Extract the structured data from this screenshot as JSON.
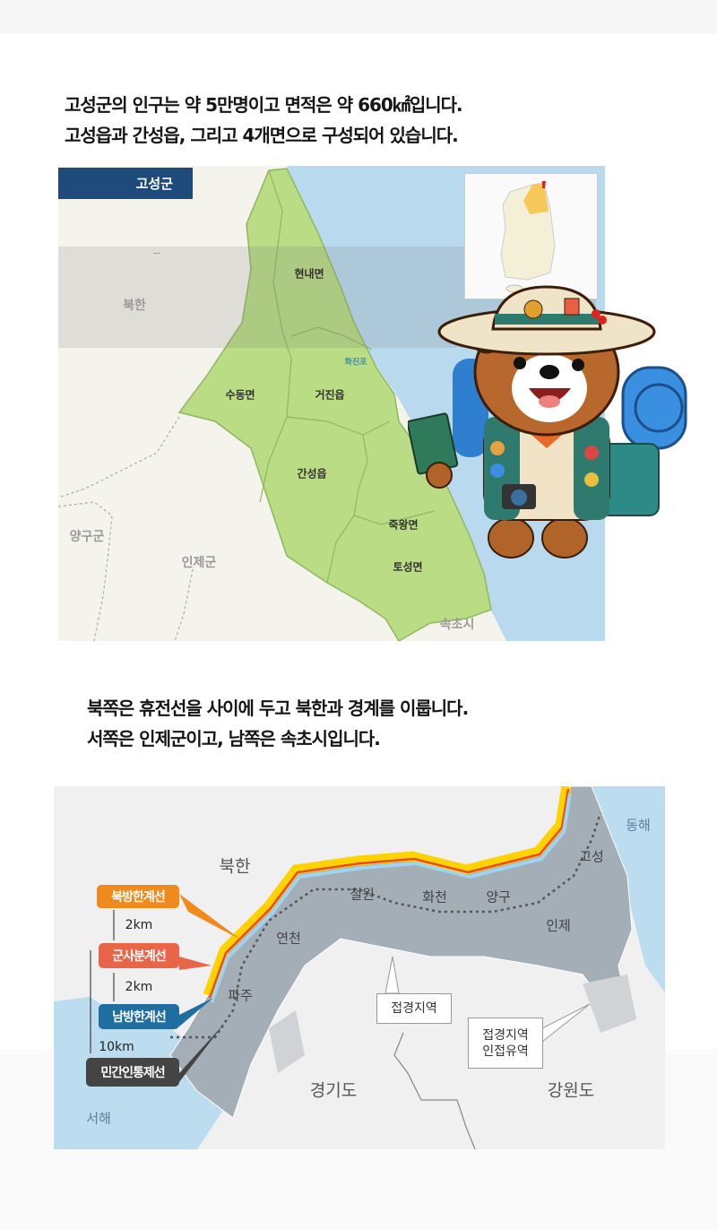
{
  "intro": {
    "lines": [
      "고성군의 인구는 약 5만명이고 면적은 약 660㎢입니다.",
      "고성읍과 간성읍, 그리고 4개면으로 구성되어 있습니다."
    ]
  },
  "map1": {
    "title": "고성군",
    "labels": {
      "north_korea": "북한",
      "hyeonnae": "현내면",
      "hwajinpo": "화진포",
      "geojin": "거진읍",
      "sudong": "수동면",
      "ganseong": "간성읍",
      "jugwang": "죽왕면",
      "toseong": "토성면",
      "yanggu": "양구군",
      "inje": "인제군",
      "sokcho": "속초시"
    },
    "colors": {
      "title_bg": "#1f4a7c",
      "land": "#b9dc84",
      "sea": "#b8d9ee"
    }
  },
  "border_text": {
    "lines": [
      "북쪽은 휴전선을 사이에 두고 북한과 경계를 이룹니다.",
      "서쪽은 인제군이고, 남쪽은 속초시입니다."
    ]
  },
  "map2": {
    "labels": {
      "north_korea": "북한",
      "east_sea": "동해",
      "west_sea": "서해",
      "goseong": "고성",
      "cheorwon": "철원",
      "hwacheon": "화천",
      "yanggu": "양구",
      "inje": "인제",
      "yeoncheon": "연천",
      "paju": "파주",
      "gyeonggi": "경기도",
      "gangwon": "강원도"
    },
    "legend": {
      "nll": "북방한계선",
      "mdl": "군사분계선",
      "sll": "남방한계선",
      "ccl": "민간인통제선",
      "dist1": "2km",
      "dist2": "2km",
      "dist3": "10km"
    },
    "callouts": {
      "border_area": "접경지역",
      "adjacent_1": "접경지역",
      "adjacent_2": "인접유역"
    },
    "colors": {
      "nll": "#f08a1c",
      "mdl": "#e8654a",
      "sll": "#1e6fa0",
      "ccl": "#444444",
      "region": "#a3aeb7",
      "sea": "#bcdcf0"
    }
  }
}
